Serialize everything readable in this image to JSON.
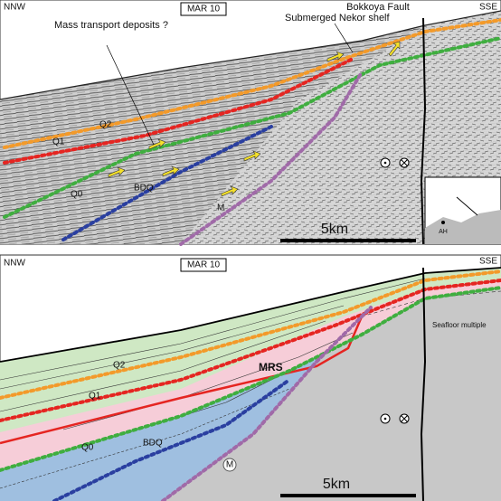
{
  "top_panel": {
    "profile": "MAR 10",
    "left_label": "NNW",
    "right_label": "SSE",
    "fault": "Bokkoya Fault",
    "shelf": "Submerged Nekor shelf",
    "mtd": "Mass transport deposits ?",
    "horizons": [
      "Q2",
      "Q1",
      "Q0",
      "BDQ",
      "M"
    ],
    "scale": "5km",
    "inset": "AH"
  },
  "bottom_panel": {
    "profile": "MAR 10",
    "left_label": "NNW",
    "right_label": "SSE",
    "horizons": [
      "Q2",
      "Q1",
      "Q0",
      "BDQ",
      "M"
    ],
    "surface": "MRS",
    "multiple": "Seafloor multiple",
    "scale": "5km"
  }
}
